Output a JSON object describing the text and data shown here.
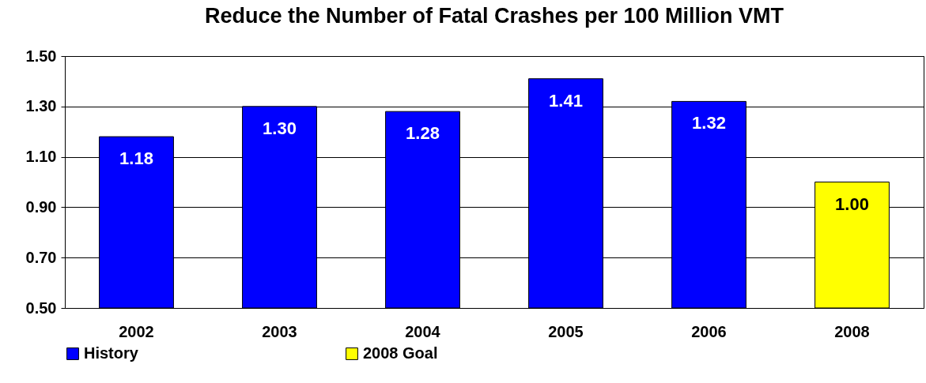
{
  "chart_data": {
    "type": "bar",
    "title": "Reduce the Number of Fatal Crashes per 100 Million VMT",
    "categories": [
      "2002",
      "2003",
      "2004",
      "2005",
      "2006",
      "2008"
    ],
    "series": [
      {
        "name": "History",
        "color": "#0000ff",
        "values": [
          1.18,
          1.3,
          1.28,
          1.41,
          1.32,
          null
        ],
        "value_labels": [
          "1.18",
          "1.30",
          "1.28",
          "1.41",
          "1.32",
          null
        ]
      },
      {
        "name": "2008 Goal",
        "color": "#ffff00",
        "values": [
          null,
          null,
          null,
          null,
          null,
          1.0
        ],
        "value_labels": [
          null,
          null,
          null,
          null,
          null,
          "1.00"
        ]
      }
    ],
    "ylim": [
      0.5,
      1.5
    ],
    "yticks": [
      {
        "value": 0.5,
        "label": "0.50"
      },
      {
        "value": 0.7,
        "label": "0.70"
      },
      {
        "value": 0.9,
        "label": "0.90"
      },
      {
        "value": 1.1,
        "label": "1.10"
      },
      {
        "value": 1.3,
        "label": "1.30"
      },
      {
        "value": 1.5,
        "label": "1.50"
      }
    ],
    "grid": "y",
    "legend": "bottom"
  }
}
